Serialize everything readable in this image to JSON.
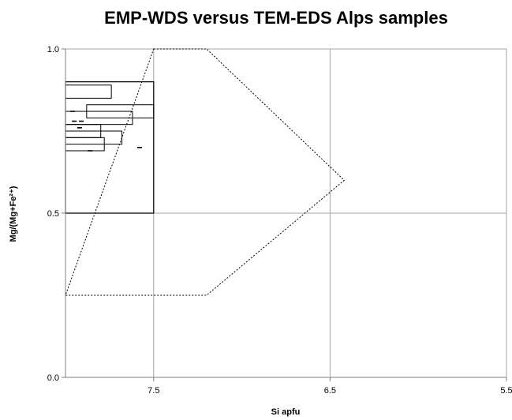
{
  "chart_data": {
    "type": "scatter",
    "title": "EMP-WDS versus TEM-EDS Alps samples",
    "xlabel": "Si apfu",
    "ylabel": "Mg/(Mg+Fe²⁺)",
    "xlim": [
      8.0,
      5.5
    ],
    "ylim": [
      0.0,
      1.0
    ],
    "x_reversed": true,
    "grid": true,
    "x_ticks": [
      {
        "value": 7.5,
        "label": "7.5"
      },
      {
        "value": 6.5,
        "label": "6.5"
      },
      {
        "value": 5.5,
        "label": "5.5"
      }
    ],
    "y_ticks": [
      {
        "value": 0.0,
        "label": "0.0"
      },
      {
        "value": 0.5,
        "label": "0.5"
      },
      {
        "value": 1.0,
        "label": "1.0"
      }
    ],
    "regions": [
      {
        "style": "solid",
        "points": [
          [
            8.0,
            0.5
          ],
          [
            7.5,
            0.5
          ],
          [
            7.5,
            0.9
          ],
          [
            8.0,
            0.9
          ]
        ]
      },
      {
        "style": "dotted",
        "points": [
          [
            7.5,
            1.0
          ],
          [
            7.2,
            1.0
          ],
          [
            6.42,
            0.6
          ],
          [
            7.2,
            0.25
          ],
          [
            8.0,
            0.25
          ]
        ]
      },
      {
        "style": "dotted",
        "points": [
          [
            8.0,
            0.5
          ],
          [
            8.0,
            0.2
          ]
        ]
      }
    ],
    "boxes": [
      {
        "x": [
          8.0,
          7.74
        ],
        "y": [
          0.85,
          0.89
        ]
      },
      {
        "x": [
          7.88,
          7.5
        ],
        "y": [
          0.79,
          0.83
        ]
      },
      {
        "x": [
          8.0,
          7.62
        ],
        "y": [
          0.77,
          0.81
        ]
      },
      {
        "x": [
          8.0,
          7.8
        ],
        "y": [
          0.73,
          0.77
        ]
      },
      {
        "x": [
          8.0,
          7.68
        ],
        "y": [
          0.71,
          0.75
        ]
      },
      {
        "x": [
          8.0,
          7.78
        ],
        "y": [
          0.69,
          0.73
        ]
      }
    ],
    "points": [
      {
        "x": 7.96,
        "y": 0.81
      },
      {
        "x": 7.95,
        "y": 0.78
      },
      {
        "x": 7.91,
        "y": 0.78
      },
      {
        "x": 7.92,
        "y": 0.76
      },
      {
        "x": 7.86,
        "y": 0.69
      },
      {
        "x": 7.58,
        "y": 0.7
      }
    ]
  }
}
